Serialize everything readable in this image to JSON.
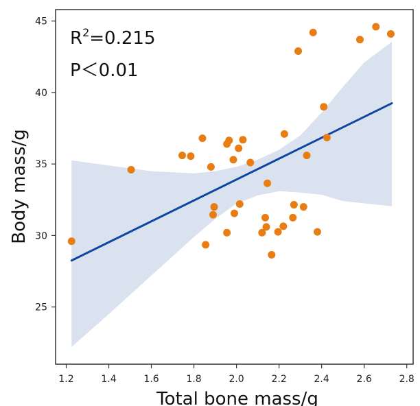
{
  "chart_data": {
    "type": "scatter",
    "xlabel": "Total bone mass/g",
    "ylabel": "Body mass/g",
    "xlim": [
      1.15,
      2.83
    ],
    "ylim": [
      21.0,
      45.8
    ],
    "xticks": [
      "1.2",
      "1.4",
      "1.6",
      "1.8",
      "2.0",
      "2.2",
      "2.4",
      "2.6",
      "2.8"
    ],
    "yticks": [
      "25",
      "30",
      "35",
      "40",
      "45"
    ],
    "grid": false,
    "annotations": {
      "r2_base": "R",
      "r2_sup": "2",
      "r2_value": "=0.215",
      "p_value": "P＜0.01"
    },
    "colors": {
      "points": "#e87d14",
      "regression": "#0d47a1",
      "confidence_band": "#dbe2ef",
      "axis": "#333333"
    },
    "regression": {
      "x": [
        1.225,
        2.73
      ],
      "y": [
        28.25,
        39.25
      ]
    },
    "confidence_band": {
      "x": [
        1.225,
        1.4,
        1.6,
        1.8,
        1.9,
        2.0,
        2.1,
        2.2,
        2.3,
        2.4,
        2.5,
        2.6,
        2.73
      ],
      "upper": [
        35.25,
        34.9,
        34.5,
        34.35,
        34.5,
        34.8,
        35.3,
        36.0,
        37.0,
        38.6,
        40.4,
        42.1,
        43.55
      ],
      "lower": [
        22.2,
        24.5,
        27.2,
        29.9,
        31.15,
        32.25,
        32.8,
        33.1,
        33.0,
        32.85,
        32.4,
        32.25,
        32.05
      ]
    },
    "points": [
      {
        "x": 1.225,
        "y": 29.6
      },
      {
        "x": 1.505,
        "y": 34.6
      },
      {
        "x": 1.745,
        "y": 35.6
      },
      {
        "x": 1.785,
        "y": 35.55
      },
      {
        "x": 1.84,
        "y": 36.8
      },
      {
        "x": 1.855,
        "y": 29.35
      },
      {
        "x": 1.88,
        "y": 34.8
      },
      {
        "x": 1.89,
        "y": 31.45
      },
      {
        "x": 1.895,
        "y": 32.0
      },
      {
        "x": 1.955,
        "y": 30.2
      },
      {
        "x": 1.955,
        "y": 36.4
      },
      {
        "x": 1.965,
        "y": 36.65
      },
      {
        "x": 1.985,
        "y": 35.3
      },
      {
        "x": 1.99,
        "y": 31.55
      },
      {
        "x": 2.01,
        "y": 36.1
      },
      {
        "x": 2.015,
        "y": 32.2
      },
      {
        "x": 2.03,
        "y": 36.7
      },
      {
        "x": 2.065,
        "y": 35.1
      },
      {
        "x": 2.12,
        "y": 30.2
      },
      {
        "x": 2.135,
        "y": 31.25
      },
      {
        "x": 2.14,
        "y": 30.6
      },
      {
        "x": 2.145,
        "y": 33.65
      },
      {
        "x": 2.165,
        "y": 28.65
      },
      {
        "x": 2.195,
        "y": 30.25
      },
      {
        "x": 2.22,
        "y": 30.65
      },
      {
        "x": 2.225,
        "y": 37.1
      },
      {
        "x": 2.265,
        "y": 31.25
      },
      {
        "x": 2.27,
        "y": 32.15
      },
      {
        "x": 2.29,
        "y": 42.9
      },
      {
        "x": 2.315,
        "y": 32.0
      },
      {
        "x": 2.33,
        "y": 35.6
      },
      {
        "x": 2.36,
        "y": 44.2
      },
      {
        "x": 2.38,
        "y": 30.25
      },
      {
        "x": 2.41,
        "y": 39.0
      },
      {
        "x": 2.425,
        "y": 36.85
      },
      {
        "x": 2.58,
        "y": 43.7
      },
      {
        "x": 2.655,
        "y": 44.6
      },
      {
        "x": 2.725,
        "y": 44.1
      }
    ]
  }
}
